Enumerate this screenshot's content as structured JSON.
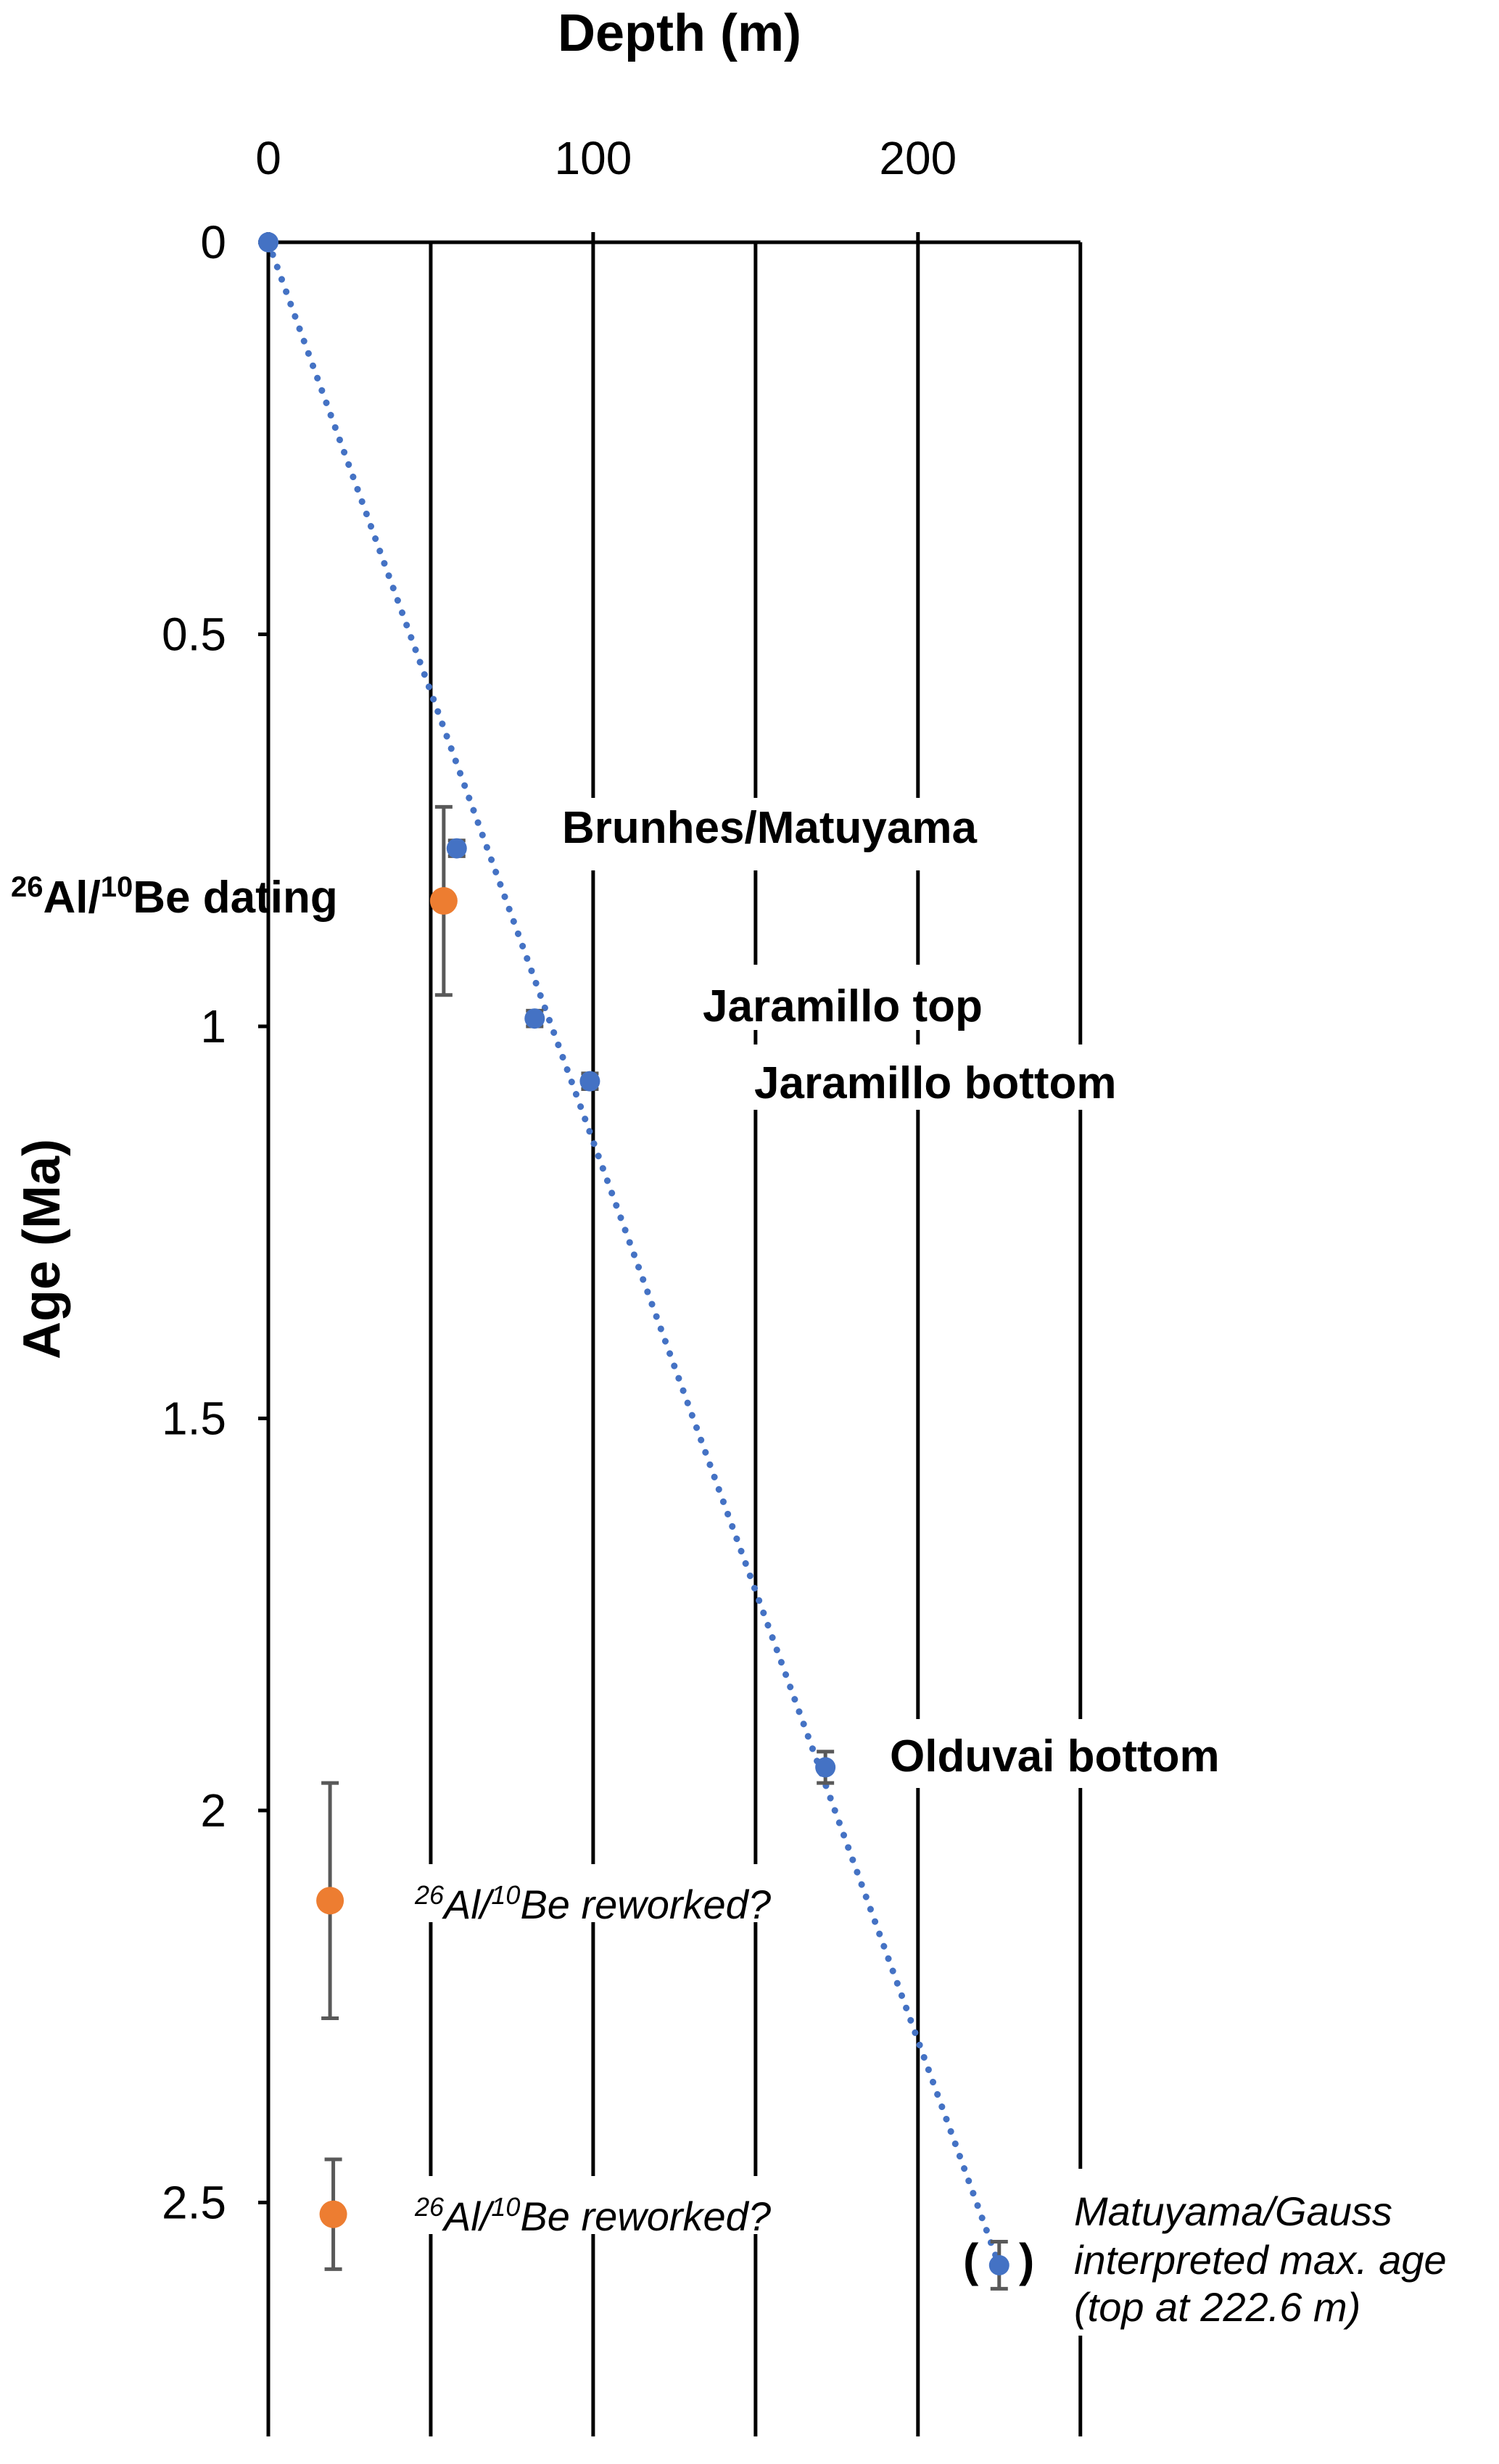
{
  "chart_data": {
    "type": "scatter",
    "xlabel": "Depth (m)",
    "ylabel": "Age (Ma)",
    "x_axis_position": "top",
    "y_axis_inverted": true,
    "xlim": [
      0,
      250
    ],
    "ylim": [
      0,
      2.8
    ],
    "x_ticks": [
      "0",
      "100",
      "200"
    ],
    "x_tick_values": [
      0,
      100,
      200
    ],
    "y_ticks": [
      "0",
      "0.5",
      "1",
      "1.5",
      "2",
      "2.5"
    ],
    "y_tick_values": [
      0,
      0.5,
      1,
      1.5,
      2,
      2.5
    ],
    "gridlines_x": [
      50,
      100,
      150,
      200,
      250
    ],
    "grid": true,
    "colors": {
      "paleomagnetic": "#4472C4",
      "cosmogenic": "#ED7D31",
      "error_bar": "#595959",
      "trend": "#4472C4"
    },
    "series": [
      {
        "marker": "paleomagnetic",
        "points": [
          {
            "x": 0,
            "y": 0,
            "err": 0
          },
          {
            "x": 58,
            "y": 0.773,
            "err": 0.01
          },
          {
            "x": 82,
            "y": 0.99,
            "err": 0.01
          },
          {
            "x": 99,
            "y": 1.07,
            "err": 0.01
          },
          {
            "x": 171.5,
            "y": 1.945,
            "err": 0.02
          },
          {
            "x": 225,
            "y": 2.58,
            "err": 0.03
          }
        ]
      },
      {
        "marker": "cosmogenic",
        "points": [
          {
            "x": 54,
            "y": 0.84,
            "err": 0.12
          },
          {
            "x": 19,
            "y": 2.115,
            "err": 0.15
          },
          {
            "x": 20,
            "y": 2.515,
            "err": 0.07
          }
        ]
      }
    ],
    "trendline": {
      "style": "dotted",
      "from": [
        0,
        0
      ],
      "to": [
        225,
        2.58
      ]
    },
    "annotations": {
      "brunhes": "Brunhes/Matuyama",
      "jaramillo_top": "Jaramillo top",
      "jaramillo_bottom": "Jaramillo bottom",
      "olduvai": "Olduvai bottom",
      "dating_sup1": "26",
      "dating_mid": "Al/",
      "dating_sup2": "10",
      "dating_end": "Be dating",
      "reworked_1_sup1": "26",
      "reworked_1_mid": "Al/",
      "reworked_1_sup2": "10",
      "reworked_1_end": "Be reworked?",
      "reworked_2_sup1": "26",
      "reworked_2_mid": "Al/",
      "reworked_2_sup2": "10",
      "reworked_2_end": "Be reworked?",
      "gauss_line1": "Matuyama/Gauss",
      "gauss_line2": "interpreted max. age",
      "gauss_line3": "(top at 222.6 m)",
      "paren_open": "(",
      "paren_close": ")"
    }
  }
}
